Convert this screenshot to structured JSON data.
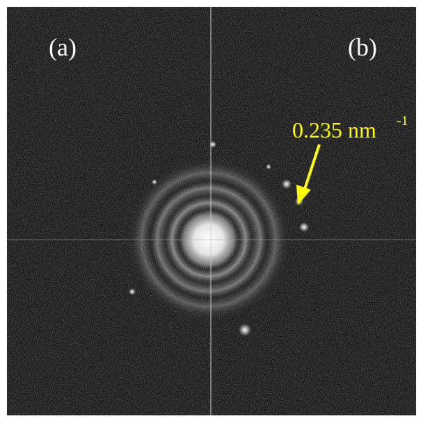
{
  "panels": {
    "left": "(a)",
    "right": "(b)"
  },
  "annotation": {
    "text": "0.235 nm",
    "superscript": "-1"
  }
}
